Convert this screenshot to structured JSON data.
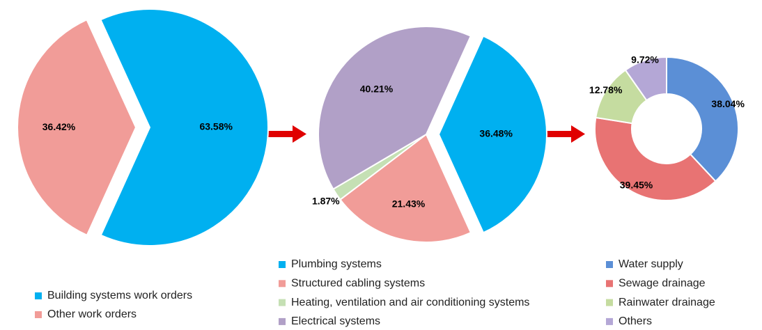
{
  "chart_data": [
    {
      "type": "pie",
      "categories": [
        "Building systems work orders",
        "Other work orders"
      ],
      "values": [
        63.58,
        36.42
      ],
      "value_labels": [
        "63.58%",
        "36.42%"
      ],
      "colors": [
        "#00b0f0",
        "#f19c98"
      ]
    },
    {
      "type": "pie",
      "categories": [
        "Plumbing systems",
        "Structured cabling systems",
        "Heating, ventilation and air conditioning systems",
        "Electrical systems"
      ],
      "values": [
        36.48,
        21.43,
        1.87,
        40.21
      ],
      "value_labels": [
        "36.48%",
        "21.43%",
        "1.87%",
        "40.21%"
      ],
      "colors": [
        "#00b0f0",
        "#f19c98",
        "#c5e0b4",
        "#b1a0c7"
      ]
    },
    {
      "type": "donut",
      "categories": [
        "Water supply",
        "Sewage drainage",
        "Rainwater drainage",
        "Others"
      ],
      "values": [
        38.04,
        39.45,
        12.78,
        9.72
      ],
      "value_labels": [
        "38.04%",
        "39.45%",
        "12.78%",
        "9.72%"
      ],
      "colors": [
        "#5b8fd6",
        "#e87373",
        "#c5dca0",
        "#b4a7d6"
      ]
    }
  ]
}
